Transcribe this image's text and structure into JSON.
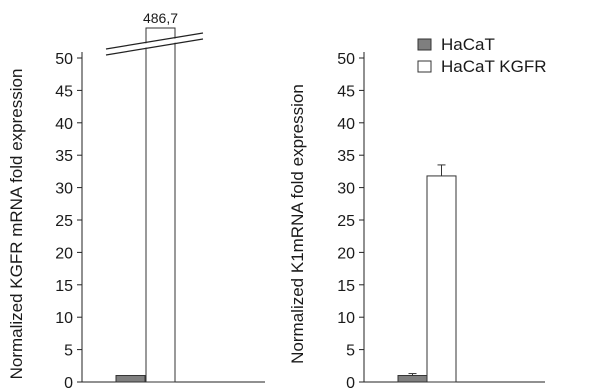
{
  "chart_data": [
    {
      "type": "bar",
      "ylabel": "Normalized KGFR mRNA fold expression",
      "ylim": [
        0,
        50
      ],
      "yticks": [
        0,
        5,
        10,
        15,
        20,
        25,
        30,
        35,
        40,
        45,
        50
      ],
      "axis_break": true,
      "series": [
        {
          "name": "HaCaT",
          "values": [
            1.0
          ],
          "color": "#7f7f7f"
        },
        {
          "name": "HaCaT KGFR",
          "values": [
            486.7
          ],
          "color": "#ffffff",
          "label": "486,7"
        }
      ]
    },
    {
      "type": "bar",
      "ylabel": "Normalized K1mRNA fold expression",
      "ylim": [
        0,
        50
      ],
      "yticks": [
        0,
        5,
        10,
        15,
        20,
        25,
        30,
        35,
        40,
        45,
        50
      ],
      "series": [
        {
          "name": "HaCaT",
          "values": [
            1.0
          ],
          "error": [
            0.3
          ],
          "color": "#7f7f7f"
        },
        {
          "name": "HaCaT KGFR",
          "values": [
            31.8
          ],
          "error": [
            1.7
          ],
          "color": "#ffffff"
        }
      ]
    }
  ],
  "legend": {
    "placement": "top-right",
    "items": [
      {
        "label": "HaCaT",
        "color": "#7f7f7f"
      },
      {
        "label": "HaCaT KGFR",
        "color": "#ffffff"
      }
    ]
  }
}
